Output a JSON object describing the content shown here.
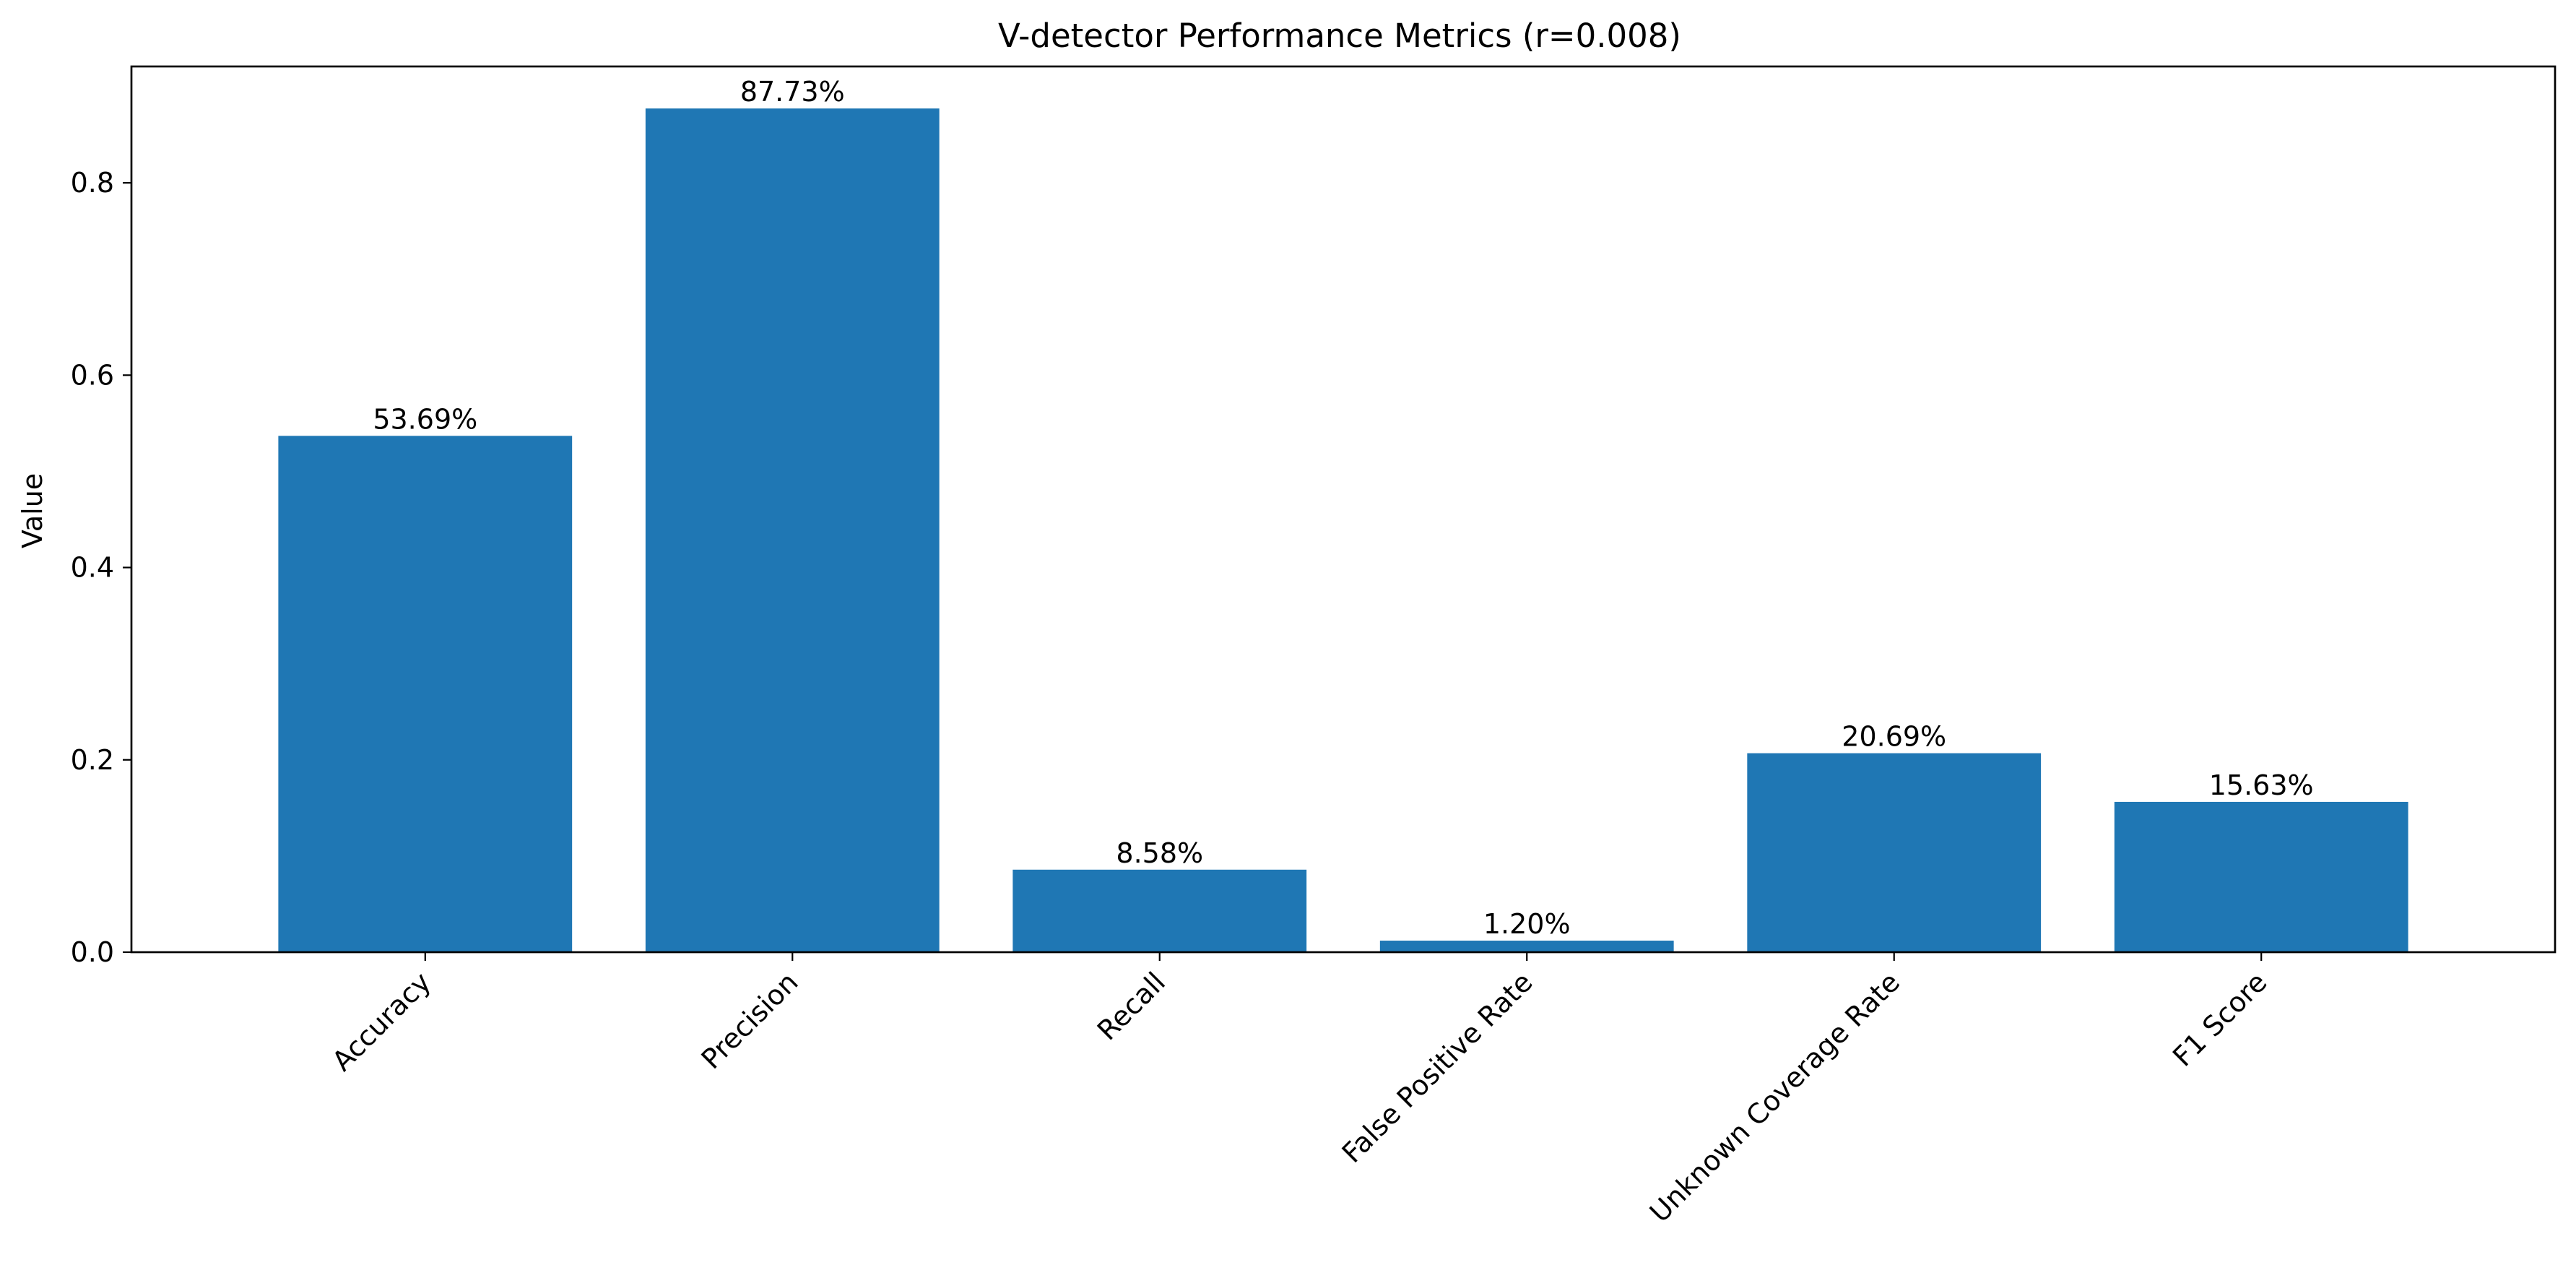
{
  "chart_data": {
    "type": "bar",
    "title": "V-detector Performance Metrics (r=0.008)",
    "xlabel": "",
    "ylabel": "Value",
    "categories": [
      "Accuracy",
      "Precision",
      "Recall",
      "False Positive Rate",
      "Unknown Coverage Rate",
      "F1 Score"
    ],
    "values": [
      0.5369,
      0.8773,
      0.0858,
      0.012,
      0.2069,
      0.1563
    ],
    "data_labels": [
      "53.69%",
      "87.73%",
      "8.58%",
      "1.20%",
      "20.69%",
      "15.63%"
    ],
    "yticks": [
      0.0,
      0.2,
      0.4,
      0.6,
      0.8
    ],
    "ytick_labels": [
      "0.0",
      "0.2",
      "0.4",
      "0.6",
      "0.8"
    ],
    "ylim": [
      0,
      0.921
    ],
    "grid": false,
    "legend": "none",
    "bar_color": "#1f77b4"
  }
}
